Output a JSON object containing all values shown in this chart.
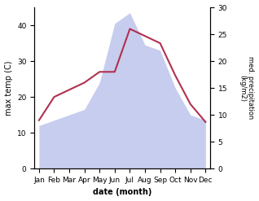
{
  "months": [
    "Jan",
    "Feb",
    "Mar",
    "Apr",
    "May",
    "Jun",
    "Jul",
    "Aug",
    "Sep",
    "Oct",
    "Nov",
    "Dec"
  ],
  "max_temp": [
    13.5,
    20,
    22,
    24,
    27,
    27,
    39,
    37,
    35,
    26,
    18,
    13
  ],
  "precipitation": [
    8,
    9,
    10,
    11,
    16,
    27,
    29,
    23,
    22,
    15,
    10,
    9
  ],
  "temp_color": "#b03050",
  "precip_color_fill": "#b0b8e8",
  "ylabel_left": "max temp (C)",
  "ylabel_right": "med. precipitation\n(kg/m2)",
  "xlabel": "date (month)",
  "ylim_left": [
    0,
    45
  ],
  "ylim_right": [
    0,
    30
  ],
  "yticks_left": [
    0,
    10,
    20,
    30,
    40
  ],
  "yticks_right": [
    0,
    5,
    10,
    15,
    20,
    25,
    30
  ],
  "bg_color": "#ffffff"
}
